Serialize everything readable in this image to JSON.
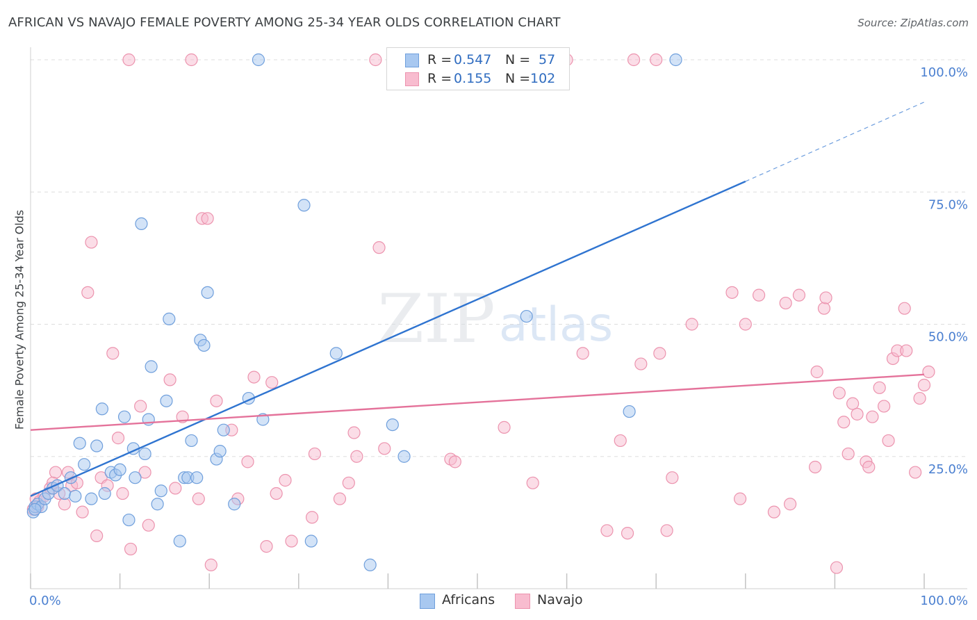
{
  "title": "AFRICAN VS NAVAJO FEMALE POVERTY AMONG 25-34 YEAR OLDS CORRELATION CHART",
  "source": "Source: ZipAtlas.com",
  "watermark": {
    "zip": "ZIP",
    "atlas": "atlas"
  },
  "legend_top": {
    "rows": [
      {
        "r_label": "R =",
        "r_value": "0.547",
        "n_label": "N =",
        "n_value": "57"
      },
      {
        "r_label": "R =",
        "r_value": "0.155",
        "n_label": "N =",
        "n_value": "102"
      }
    ]
  },
  "legend_bottom": {
    "africans": "Africans",
    "navajo": "Navajo"
  },
  "colors": {
    "africans_fill": "#a8c8f0",
    "africans_stroke": "#6f9fdc",
    "africans_line": "#2f74d0",
    "navajo_fill": "#f8bccf",
    "navajo_stroke": "#ec93ae",
    "navajo_line": "#e4729a",
    "tick_label": "#4a7fd0",
    "grid": "#dddddd"
  },
  "chart_data": {
    "type": "scatter",
    "xlabel": "",
    "ylabel": "Female Poverty Among 25-34 Year Olds",
    "xlim": [
      0,
      100
    ],
    "ylim": [
      0,
      100
    ],
    "x_tick_labels": [
      {
        "value": 0,
        "label": "0.0%"
      },
      {
        "value": 100,
        "label": "100.0%"
      }
    ],
    "y_tick_labels": [
      {
        "value": 25,
        "label": "25.0%"
      },
      {
        "value": 50,
        "label": "50.0%"
      },
      {
        "value": 75,
        "label": "75.0%"
      },
      {
        "value": 100,
        "label": "100.0%"
      }
    ],
    "grid": true,
    "series": [
      {
        "name": "Africans",
        "r": 0.547,
        "n": 57,
        "trend": {
          "x0": 0,
          "y0": 17.5,
          "x1": 80,
          "y1": 77,
          "dash_to_x": 100,
          "dash_to_y": 92
        },
        "points": [
          [
            0.3,
            14.5
          ],
          [
            0.5,
            15.5
          ],
          [
            0.8,
            16
          ],
          [
            1.2,
            15.5
          ],
          [
            1.6,
            17
          ],
          [
            2,
            18
          ],
          [
            2.5,
            19
          ],
          [
            3,
            19.5
          ],
          [
            3.8,
            18
          ],
          [
            4.5,
            21
          ],
          [
            5,
            17.5
          ],
          [
            5.5,
            27.5
          ],
          [
            6,
            23.5
          ],
          [
            6.8,
            17
          ],
          [
            7.4,
            27
          ],
          [
            8,
            34
          ],
          [
            8.3,
            18
          ],
          [
            9,
            22
          ],
          [
            9.5,
            21.5
          ],
          [
            10,
            22.5
          ],
          [
            10.5,
            32.5
          ],
          [
            11,
            13
          ],
          [
            11.5,
            26.5
          ],
          [
            11.7,
            21
          ],
          [
            12.4,
            69
          ],
          [
            12.8,
            25.5
          ],
          [
            13.2,
            32
          ],
          [
            13.5,
            42
          ],
          [
            14.2,
            16
          ],
          [
            14.6,
            18.5
          ],
          [
            15.2,
            35.5
          ],
          [
            15.5,
            51
          ],
          [
            16.7,
            9
          ],
          [
            17.2,
            21
          ],
          [
            17.6,
            21
          ],
          [
            18,
            28
          ],
          [
            18.6,
            21
          ],
          [
            19,
            47
          ],
          [
            19.4,
            46
          ],
          [
            19.8,
            56
          ],
          [
            20.8,
            24.5
          ],
          [
            21.2,
            26
          ],
          [
            21.6,
            30
          ],
          [
            22.8,
            16
          ],
          [
            24.4,
            36
          ],
          [
            25.5,
            100
          ],
          [
            26,
            32
          ],
          [
            30.6,
            72.5
          ],
          [
            31.4,
            9
          ],
          [
            34.2,
            44.5
          ],
          [
            38,
            4.5
          ],
          [
            40.5,
            31
          ],
          [
            41.8,
            25
          ],
          [
            55.5,
            51.5
          ],
          [
            67,
            33.5
          ],
          [
            72.2,
            100
          ],
          [
            0.5,
            15
          ]
        ]
      },
      {
        "name": "Navajo",
        "r": 0.155,
        "n": 102,
        "trend": {
          "x0": 0,
          "y0": 30,
          "x1": 100,
          "y1": 40.5
        },
        "points": [
          [
            0.3,
            15
          ],
          [
            0.6,
            17
          ],
          [
            1,
            16.5
          ],
          [
            1.5,
            17.5
          ],
          [
            2.2,
            19
          ],
          [
            2.8,
            22
          ],
          [
            3.2,
            18
          ],
          [
            3.8,
            16
          ],
          [
            4.2,
            22
          ],
          [
            4.6,
            19.5
          ],
          [
            5.2,
            20
          ],
          [
            5.8,
            14.5
          ],
          [
            6.4,
            56
          ],
          [
            6.8,
            65.5
          ],
          [
            7.4,
            10
          ],
          [
            7.9,
            21
          ],
          [
            8.6,
            19.5
          ],
          [
            9.2,
            44.5
          ],
          [
            9.8,
            28.5
          ],
          [
            10.3,
            18
          ],
          [
            11,
            100
          ],
          [
            11.2,
            7.5
          ],
          [
            12.3,
            34.5
          ],
          [
            12.8,
            22
          ],
          [
            13.2,
            12
          ],
          [
            15.6,
            39.5
          ],
          [
            16.2,
            19
          ],
          [
            17,
            32.5
          ],
          [
            18,
            100
          ],
          [
            18.8,
            17
          ],
          [
            19.2,
            70
          ],
          [
            19.8,
            70
          ],
          [
            20.2,
            4.5
          ],
          [
            20.8,
            35.5
          ],
          [
            22.5,
            30
          ],
          [
            23.2,
            17
          ],
          [
            24.3,
            24
          ],
          [
            25,
            40
          ],
          [
            26.4,
            8
          ],
          [
            27,
            39
          ],
          [
            27.5,
            18
          ],
          [
            28.5,
            20.5
          ],
          [
            29.2,
            9
          ],
          [
            31.5,
            13.5
          ],
          [
            31.8,
            25.5
          ],
          [
            34.6,
            17
          ],
          [
            35.6,
            20
          ],
          [
            36.2,
            29.5
          ],
          [
            36.5,
            25
          ],
          [
            38.6,
            100
          ],
          [
            39,
            64.5
          ],
          [
            39.6,
            26.5
          ],
          [
            47,
            24.5
          ],
          [
            47.5,
            24
          ],
          [
            53,
            30.5
          ],
          [
            56.2,
            20
          ],
          [
            60,
            100
          ],
          [
            61.8,
            44.5
          ],
          [
            64.5,
            11
          ],
          [
            66,
            28
          ],
          [
            66.8,
            10.5
          ],
          [
            67.5,
            100
          ],
          [
            68.3,
            42.5
          ],
          [
            70,
            100
          ],
          [
            70.4,
            44.5
          ],
          [
            71.2,
            11
          ],
          [
            71.8,
            21
          ],
          [
            74,
            50
          ],
          [
            78.5,
            56
          ],
          [
            79.4,
            17
          ],
          [
            80,
            50
          ],
          [
            81.5,
            55.5
          ],
          [
            83.2,
            14.5
          ],
          [
            84.5,
            54
          ],
          [
            85,
            16
          ],
          [
            86,
            55.5
          ],
          [
            87.8,
            23
          ],
          [
            88,
            41
          ],
          [
            88.8,
            53
          ],
          [
            89,
            55
          ],
          [
            90.2,
            4
          ],
          [
            90.5,
            37
          ],
          [
            91,
            31.5
          ],
          [
            91.5,
            25.5
          ],
          [
            92,
            35
          ],
          [
            92.5,
            33
          ],
          [
            93.5,
            24
          ],
          [
            93.8,
            23
          ],
          [
            94.2,
            32.5
          ],
          [
            95,
            38
          ],
          [
            95.5,
            34.5
          ],
          [
            96,
            28
          ],
          [
            96.5,
            43.5
          ],
          [
            97,
            45
          ],
          [
            97.8,
            53
          ],
          [
            98,
            45
          ],
          [
            99,
            22
          ],
          [
            99.5,
            36
          ],
          [
            100,
            38.5
          ],
          [
            100.5,
            41
          ],
          [
            0.8,
            15.5
          ],
          [
            2.5,
            20
          ]
        ]
      }
    ]
  }
}
